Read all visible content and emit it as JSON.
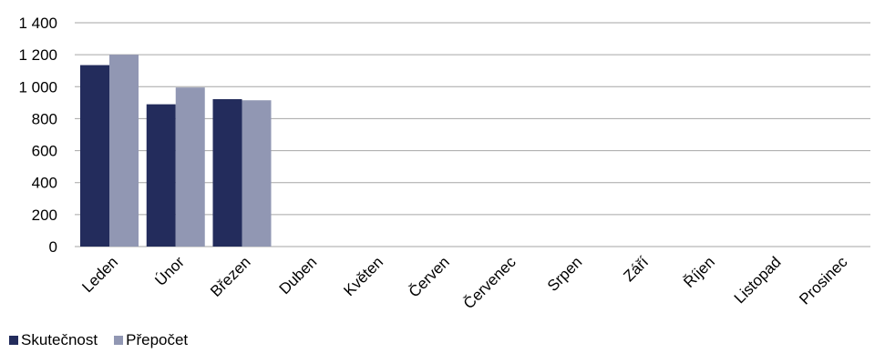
{
  "chart_data": {
    "type": "bar",
    "categories": [
      "Leden",
      "Únor",
      "Březen",
      "Duben",
      "Květen",
      "Červen",
      "Červenec",
      "Srpen",
      "Září",
      "Říjen",
      "Listopad",
      "Prosinec"
    ],
    "series": [
      {
        "name": "Skutečnost",
        "color": "#232c5c",
        "values": [
          1135,
          890,
          922,
          null,
          null,
          null,
          null,
          null,
          null,
          null,
          null,
          null
        ]
      },
      {
        "name": "Přepočet",
        "color": "#9197b3",
        "values": [
          1200,
          995,
          915,
          null,
          null,
          null,
          null,
          null,
          null,
          null,
          null,
          null
        ]
      }
    ],
    "ylim": [
      0,
      1400
    ],
    "yticks": [
      0,
      200,
      400,
      600,
      800,
      1000,
      1200,
      1400
    ],
    "ytick_labels": [
      "0",
      "200",
      "400",
      "600",
      "800",
      "1 000",
      "1 200",
      "1 400"
    ],
    "grid": true,
    "gridline_color": "#a6a6a6",
    "legend_position": "bottom-left",
    "title": "",
    "xlabel": "",
    "ylabel": ""
  }
}
